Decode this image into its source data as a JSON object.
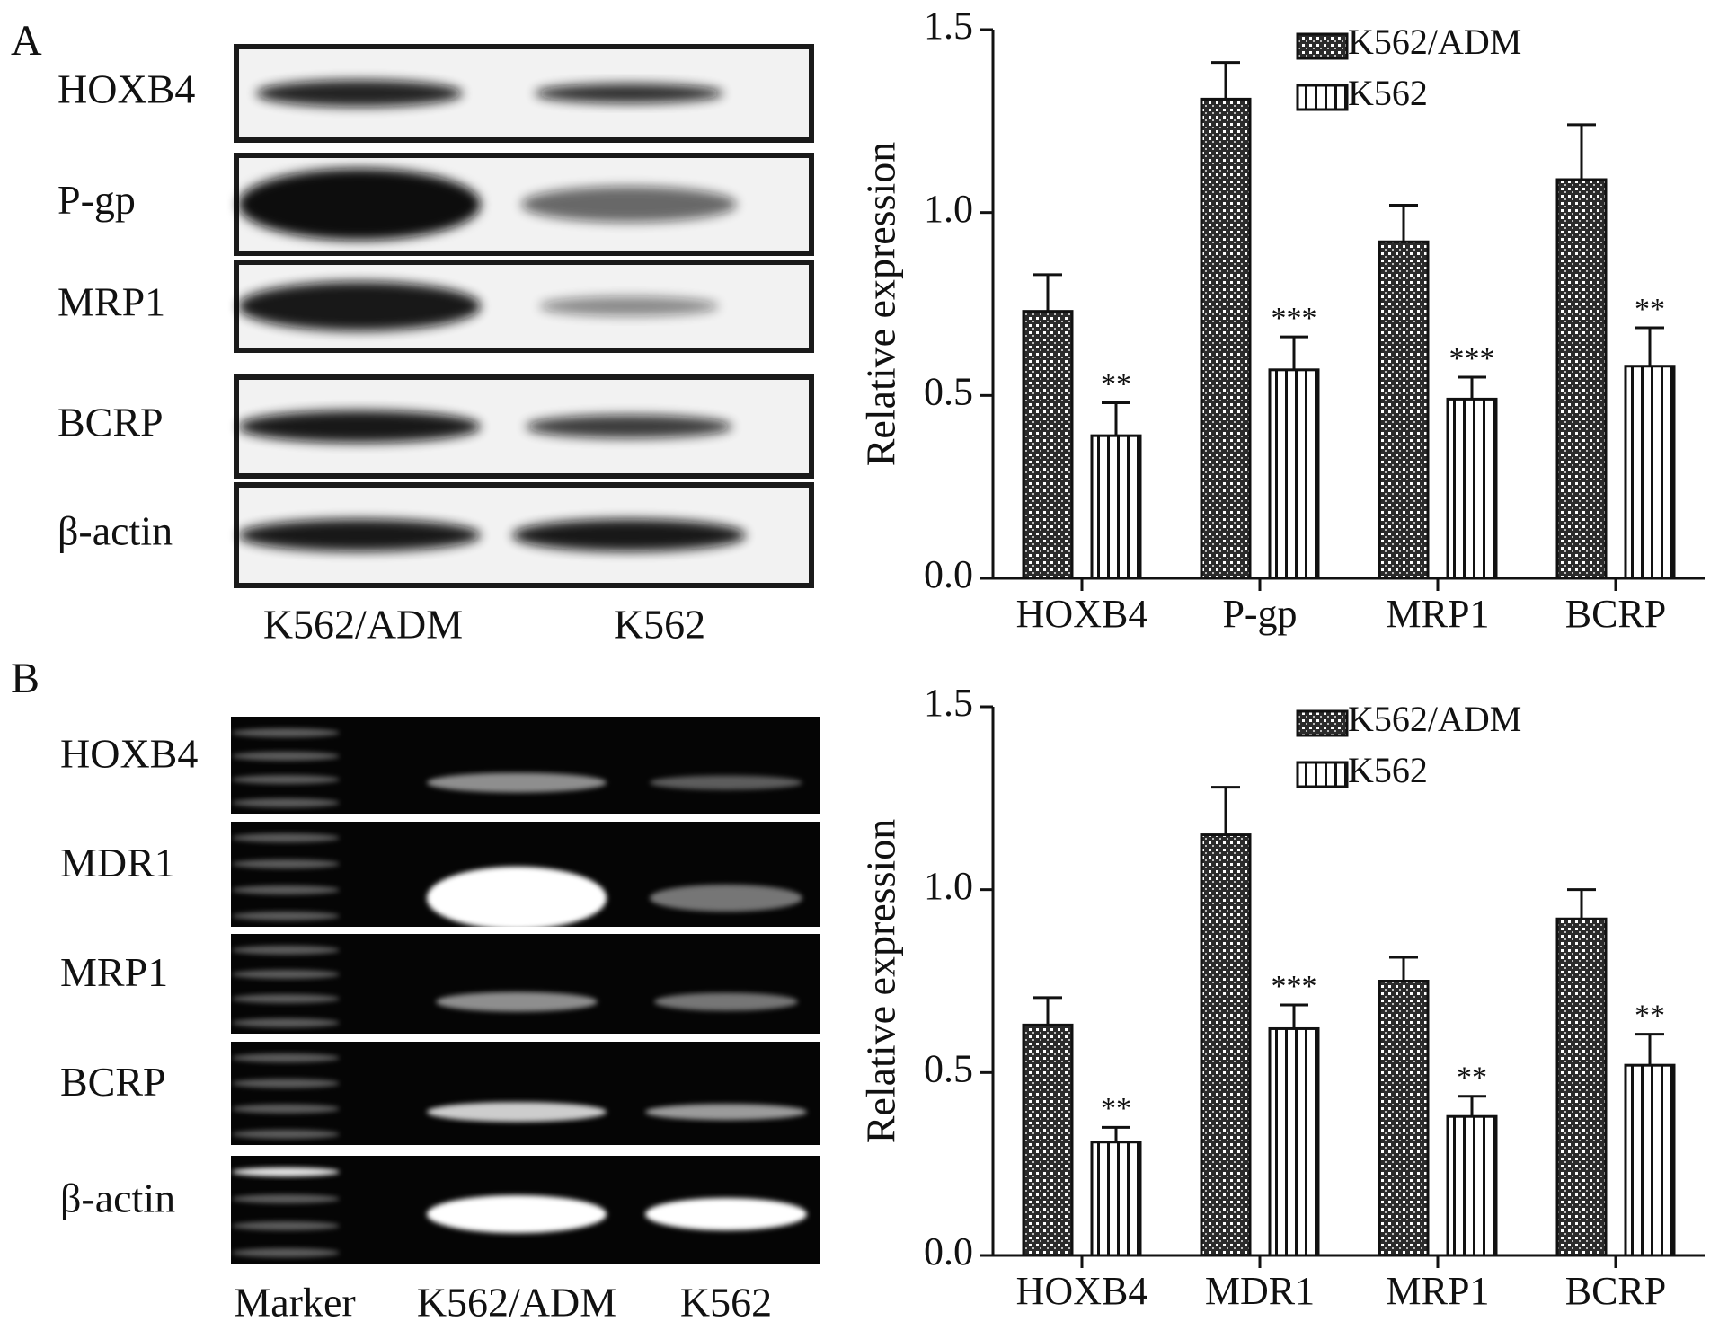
{
  "panel_labels": [
    "A",
    "B"
  ],
  "blots": [
    {
      "rows": [
        "HOXB4",
        "P-gp",
        "MRP1",
        "BCRP",
        "β-actin"
      ],
      "lanes": [
        "K562/ADM",
        "K562"
      ]
    },
    {
      "rows": [
        "HOXB4",
        "MDR1",
        "MRP1",
        "BCRP",
        "β-actin"
      ],
      "lanes": [
        "Marker",
        "K562/ADM",
        "K562"
      ]
    }
  ],
  "chart_data": [
    {
      "type": "bar",
      "y_label": "Relative expression",
      "categories": [
        "HOXB4",
        "P-gp",
        "MRP1",
        "BCRP"
      ],
      "series": [
        {
          "name": "K562/ADM",
          "color": "#2b2b2b",
          "pattern": "checker",
          "values": [
            0.73,
            1.31,
            0.92,
            1.09
          ],
          "errors": [
            0.1,
            0.1,
            0.1,
            0.15
          ]
        },
        {
          "name": "K562",
          "color": "#ffffff",
          "pattern": "stripes",
          "values": [
            0.39,
            0.57,
            0.49,
            0.58
          ],
          "errors": [
            0.09,
            0.09,
            0.06,
            0.105
          ],
          "annotations": [
            "**",
            "***",
            "***",
            "**"
          ]
        }
      ],
      "ylim": [
        0,
        1.5
      ],
      "yticks": [
        {
          "value": 0,
          "label": "0.0"
        },
        0.5,
        {
          "value": 1,
          "label": "1.0"
        },
        1.5
      ]
    },
    {
      "type": "bar",
      "y_label": "Relative expression",
      "categories": [
        "HOXB4",
        "MDR1",
        "MRP1",
        "BCRP"
      ],
      "series": [
        {
          "name": "K562/ADM",
          "color": "#2b2b2b",
          "pattern": "checker",
          "values": [
            0.63,
            1.15,
            0.75,
            0.92
          ],
          "errors": [
            0.075,
            0.13,
            0.065,
            0.08
          ]
        },
        {
          "name": "K562",
          "color": "#ffffff",
          "pattern": "stripes",
          "values": [
            0.31,
            0.62,
            0.38,
            0.52
          ],
          "errors": [
            0.04,
            0.065,
            0.055,
            0.085
          ],
          "annotations": [
            "**",
            "***",
            "**",
            "**"
          ]
        }
      ],
      "ylim": [
        0,
        1.5
      ],
      "yticks": [
        {
          "value": 0,
          "label": "0.0"
        },
        0.5,
        {
          "value": 1,
          "label": "1.0"
        },
        1.5
      ]
    }
  ]
}
